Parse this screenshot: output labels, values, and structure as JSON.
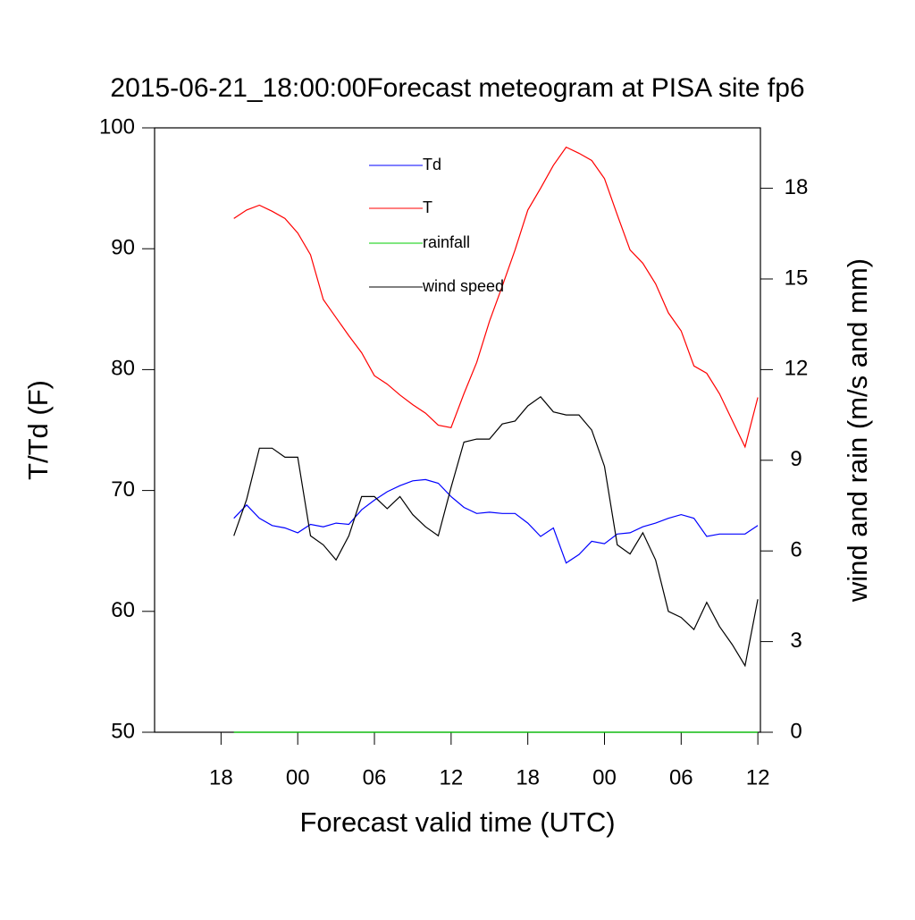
{
  "chart_data": {
    "type": "line",
    "title": "2015-06-21_18:00:00Forecast meteogram at PISA site fp6",
    "x_label": "Forecast valid time (UTC)",
    "y_label": "T/Td (F)",
    "y2_label": "wind and rain (m/s and mm)",
    "x": [
      19,
      20,
      21,
      22,
      23,
      24,
      25,
      26,
      27,
      28,
      29,
      30,
      31,
      32,
      33,
      34,
      35,
      36,
      37,
      38,
      39,
      40,
      41,
      42,
      43,
      44,
      45,
      46,
      47,
      48,
      49,
      50,
      51,
      52,
      53,
      54,
      55,
      56,
      57,
      58,
      59,
      60
    ],
    "xlim": [
      12.8,
      60.2
    ],
    "xticks": [
      18,
      {
        "value": 24,
        "label": "00"
      },
      {
        "value": 30,
        "label": "06"
      },
      {
        "value": 36,
        "label": "12"
      },
      {
        "value": 42,
        "label": "18"
      },
      {
        "value": 48,
        "label": "00"
      },
      {
        "value": 54,
        "label": "06"
      },
      {
        "value": 60,
        "label": "12"
      }
    ],
    "ylim": [
      50,
      100
    ],
    "yticks": [
      50,
      60,
      70,
      80,
      90,
      100
    ],
    "y2lim": [
      0,
      20
    ],
    "y2ticks": [
      0,
      3,
      6,
      9,
      12,
      15,
      18
    ],
    "series": [
      {
        "name": "Td",
        "color": "#0000ff",
        "values": [
          67.7,
          68.8,
          67.7,
          67.1,
          66.9,
          66.5,
          67.2,
          67.0,
          67.3,
          67.2,
          68.4,
          69.2,
          69.9,
          70.4,
          70.8,
          70.9,
          70.6,
          69.5,
          68.6,
          68.1,
          68.2,
          68.1,
          68.1,
          67.3,
          66.2,
          66.9,
          64.0,
          64.7,
          65.8,
          65.6,
          66.4,
          66.5,
          67.0,
          67.3,
          67.7,
          68.0,
          67.7,
          66.2,
          66.4,
          66.4,
          66.4,
          67.1
        ]
      },
      {
        "name": "T",
        "color": "#ff0000",
        "values": [
          92.5,
          93.2,
          93.6,
          93.1,
          92.5,
          91.3,
          89.5,
          85.8,
          84.3,
          82.8,
          81.4,
          79.5,
          78.8,
          77.9,
          77.1,
          76.4,
          75.4,
          75.2,
          78.0,
          80.6,
          84.0,
          86.9,
          89.9,
          93.2,
          95.0,
          96.9,
          98.4,
          97.9,
          97.3,
          95.8,
          92.8,
          89.9,
          88.8,
          87.1,
          84.7,
          83.2,
          80.3,
          79.7,
          78.0,
          75.8,
          73.6,
          77.7
        ]
      },
      {
        "name": "rainfall",
        "color": "#00cc00",
        "axis": "y2",
        "values": [
          0,
          0,
          0,
          0,
          0,
          0,
          0,
          0,
          0,
          0,
          0,
          0,
          0,
          0,
          0,
          0,
          0,
          0,
          0,
          0,
          0,
          0,
          0,
          0,
          0,
          0,
          0,
          0,
          0,
          0,
          0,
          0,
          0,
          0,
          0,
          0,
          0,
          0,
          0,
          0,
          0,
          0
        ]
      },
      {
        "name": "wind speed",
        "color": "#000000",
        "axis": "y2",
        "values": [
          6.5,
          7.7,
          9.4,
          9.4,
          9.1,
          9.1,
          6.5,
          6.2,
          5.7,
          6.5,
          7.8,
          7.8,
          7.4,
          7.8,
          7.2,
          6.8,
          6.5,
          8.1,
          9.6,
          9.7,
          9.7,
          10.2,
          10.3,
          10.8,
          11.1,
          10.6,
          10.5,
          10.5,
          10.0,
          8.8,
          6.2,
          5.9,
          6.6,
          5.7,
          4.0,
          3.8,
          3.4,
          4.3,
          3.5,
          2.9,
          2.2,
          4.4
        ]
      }
    ]
  }
}
